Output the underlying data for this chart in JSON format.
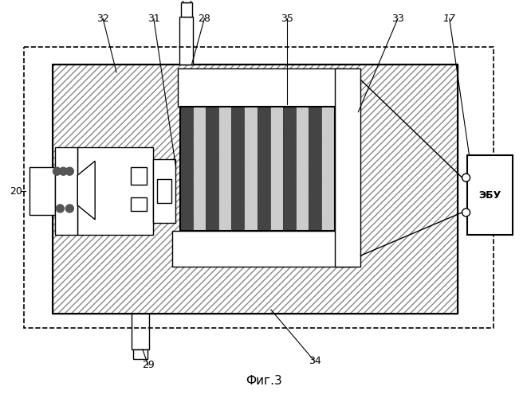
{
  "fig_width": 6.61,
  "fig_height": 5.0,
  "dpi": 100,
  "bg_color": "#ffffff",
  "lc": "#000000",
  "caption": "Фиг.3",
  "ecu_label": "ЭБУ"
}
